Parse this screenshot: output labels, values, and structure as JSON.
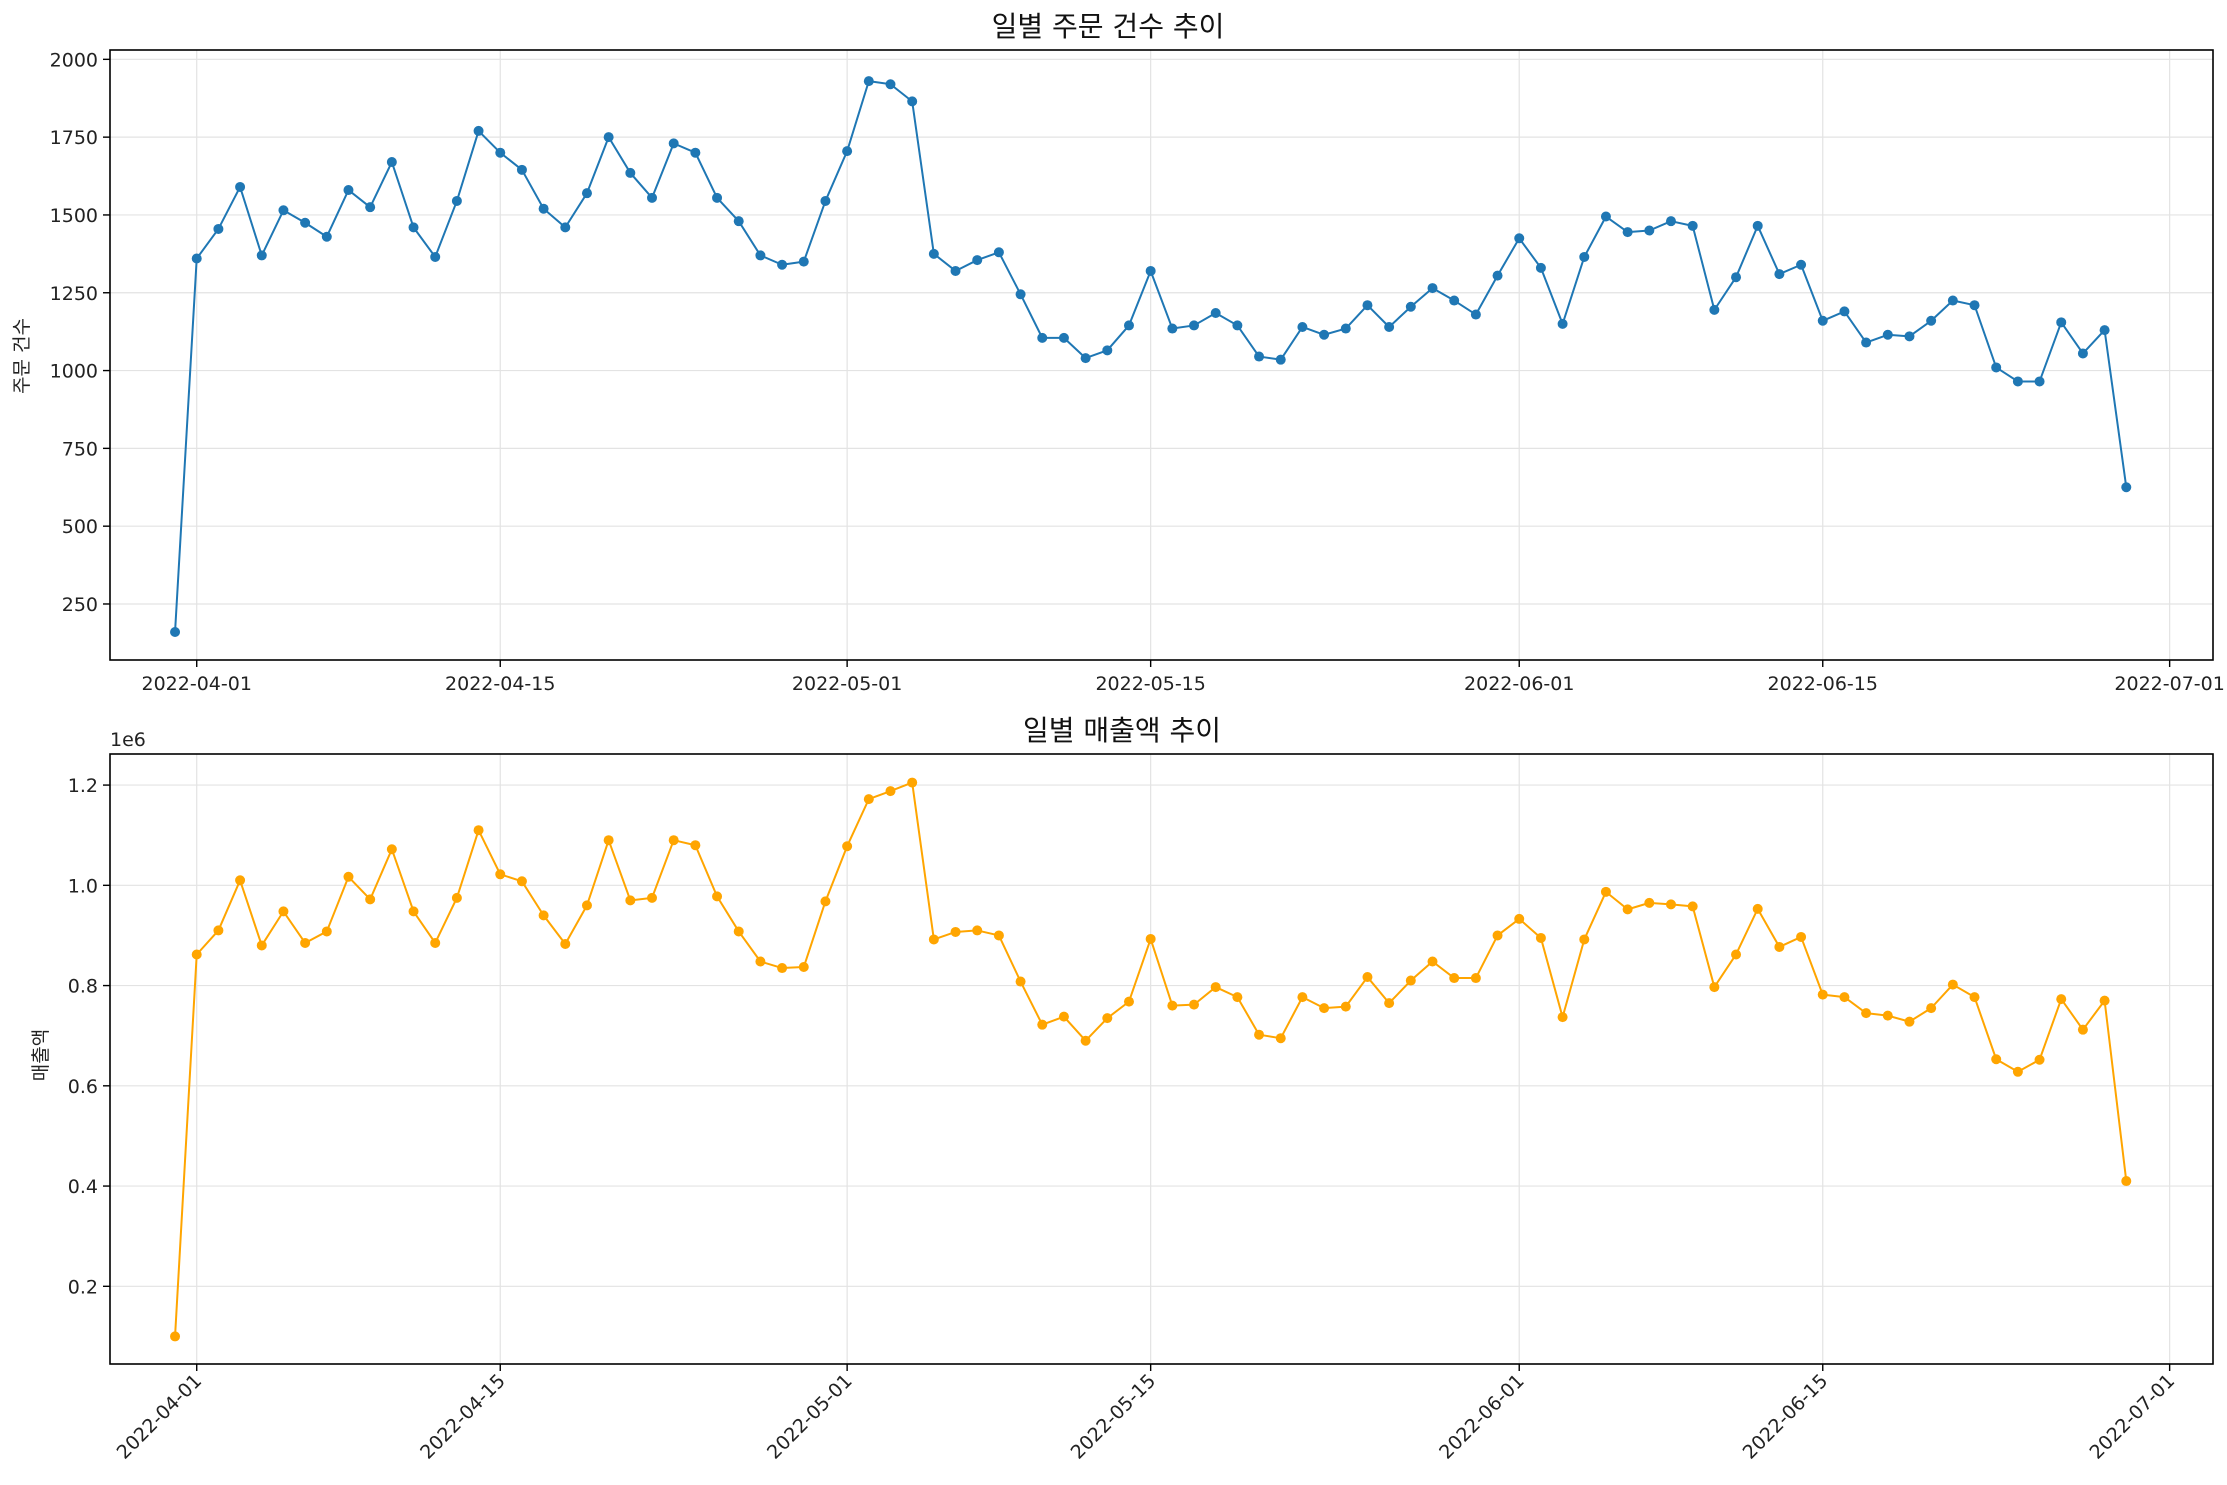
{
  "colors": {
    "orders": "#1f77b4",
    "revenue": "#ffa500"
  },
  "chart_data": [
    {
      "type": "line",
      "title": "일별 주문 건수 추이",
      "xlabel": "",
      "ylabel": "주문 건수",
      "x_start": "2022-03-31",
      "x_end": "2022-06-29",
      "xlim": [
        "2022-03-28",
        "2022-07-03"
      ],
      "xticks": [
        "2022-04-01",
        "2022-04-15",
        "2022-05-01",
        "2022-05-15",
        "2022-06-01",
        "2022-06-15",
        "2022-07-01"
      ],
      "ylim": [
        70,
        2030
      ],
      "yticks": [
        250,
        500,
        750,
        1000,
        1250,
        1500,
        1750,
        2000
      ],
      "ytick_labels": [
        "250",
        "500",
        "750",
        "1000",
        "1250",
        "1500",
        "1750",
        "2000"
      ],
      "offset_label": "",
      "grid": true,
      "series": [
        {
          "color": "#1f77b4",
          "values": [
            160,
            1360,
            1455,
            1590,
            1370,
            1515,
            1475,
            1430,
            1580,
            1525,
            1670,
            1460,
            1365,
            1545,
            1770,
            1700,
            1645,
            1520,
            1460,
            1570,
            1750,
            1635,
            1555,
            1730,
            1700,
            1555,
            1480,
            1370,
            1340,
            1350,
            1545,
            1705,
            1930,
            1920,
            1865,
            1375,
            1320,
            1355,
            1380,
            1245,
            1105,
            1105,
            1040,
            1065,
            1145,
            1320,
            1135,
            1145,
            1185,
            1145,
            1045,
            1035,
            1140,
            1115,
            1135,
            1210,
            1140,
            1205,
            1265,
            1225,
            1180,
            1305,
            1425,
            1330,
            1150,
            1365,
            1495,
            1445,
            1450,
            1480,
            1465,
            1195,
            1300,
            1465,
            1310,
            1340,
            1160,
            1190,
            1090,
            1115,
            1110,
            1160,
            1225,
            1210,
            1010,
            965,
            965,
            1155,
            1055,
            1130,
            625
          ]
        }
      ]
    },
    {
      "type": "line",
      "title": "일별 매출액 추이",
      "xlabel": "",
      "ylabel": "매출액",
      "x_start": "2022-03-31",
      "x_end": "2022-06-29",
      "xlim": [
        "2022-03-28",
        "2022-07-03"
      ],
      "xticks": [
        "2022-04-01",
        "2022-04-15",
        "2022-05-01",
        "2022-05-15",
        "2022-06-01",
        "2022-06-15",
        "2022-07-01"
      ],
      "ylim": [
        45000,
        1262000
      ],
      "yticks": [
        200000,
        400000,
        600000,
        800000,
        1000000,
        1200000
      ],
      "ytick_labels": [
        "0.2",
        "0.4",
        "0.6",
        "0.8",
        "1.0",
        "1.2"
      ],
      "offset_label": "1e6",
      "grid": true,
      "series": [
        {
          "color": "#ffa500",
          "values": [
            100000,
            862000,
            910000,
            1010000,
            880000,
            948000,
            885000,
            908000,
            1017000,
            972000,
            1072000,
            948000,
            885000,
            975000,
            1110000,
            1022000,
            1008000,
            940000,
            883000,
            960000,
            1090000,
            970000,
            975000,
            1090000,
            1080000,
            978000,
            908000,
            848000,
            835000,
            837000,
            968000,
            1078000,
            1172000,
            1188000,
            1205000,
            892000,
            907000,
            910000,
            900000,
            808000,
            722000,
            738000,
            690000,
            735000,
            768000,
            893000,
            760000,
            762000,
            797000,
            777000,
            702000,
            695000,
            777000,
            755000,
            758000,
            817000,
            765000,
            810000,
            848000,
            815000,
            815000,
            900000,
            933000,
            895000,
            737000,
            892000,
            987000,
            952000,
            965000,
            962000,
            958000,
            797000,
            862000,
            953000,
            877000,
            897000,
            782000,
            777000,
            745000,
            740000,
            728000,
            755000,
            802000,
            777000,
            653000,
            628000,
            652000,
            773000,
            712000,
            770000,
            410000
          ]
        }
      ]
    }
  ]
}
